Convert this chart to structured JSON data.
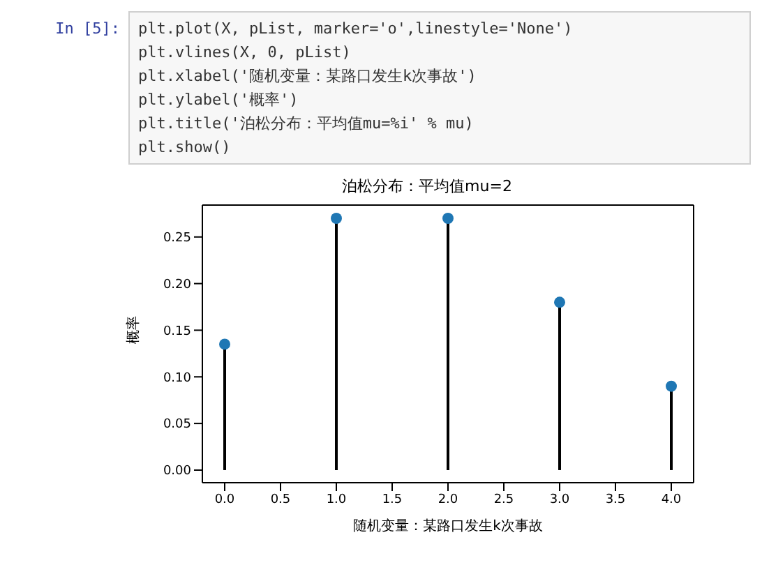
{
  "chart_data": {
    "type": "lollipop",
    "title": "泊松分布：平均值mu=2",
    "xlabel": "随机变量：某路口发生k次事故",
    "ylabel": "概率",
    "annotations": [
      "In [5]:",
      "plt.plot(X, pList, marker='o',linestyle='None')",
      "plt.vlines(X, 0, pList)",
      "plt.xlabel('随机变量：某路口发生k次事故')",
      "plt.ylabel('概率')",
      "plt.title('泊松分布：平均值mu=%i' % mu)",
      "plt.show()"
    ],
    "x": [
      0,
      1,
      2,
      3,
      4
    ],
    "series": [
      {
        "color": "#1f77b4",
        "values": [
          0.135,
          0.27,
          0.27,
          0.18,
          0.09
        ]
      }
    ],
    "xlim": [
      -0.2,
      4.2
    ],
    "xticks": [
      {
        "value": 0,
        "label": "0.0"
      },
      {
        "value": 0.5,
        "label": "0.5"
      },
      {
        "value": 1,
        "label": "1.0"
      },
      {
        "value": 1.5,
        "label": "1.5"
      },
      {
        "value": 2,
        "label": "2.0"
      },
      {
        "value": 2.5,
        "label": "2.5"
      },
      {
        "value": 3,
        "label": "3.0"
      },
      {
        "value": 3.5,
        "label": "3.5"
      },
      {
        "value": 4,
        "label": "4.0"
      }
    ],
    "ylim": [
      -0.0135,
      0.2842
    ],
    "yticks": [
      {
        "value": 0,
        "label": "0.00"
      },
      {
        "value": 0.05,
        "label": "0.05"
      },
      {
        "value": 0.1,
        "label": "0.10"
      },
      {
        "value": 0.15,
        "label": "0.15"
      },
      {
        "value": 0.2,
        "label": "0.20"
      },
      {
        "value": 0.25,
        "label": "0.25"
      }
    ],
    "marker": "circle"
  }
}
